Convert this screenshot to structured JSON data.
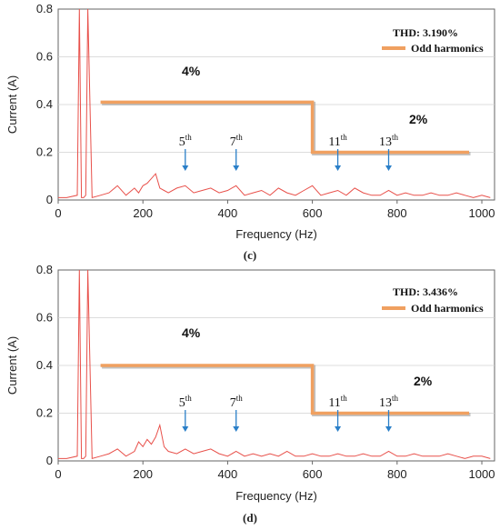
{
  "chart_data": [
    {
      "type": "line",
      "panel_caption": "(c)",
      "xlabel": "Frequency (Hz)",
      "ylabel": "Current (A)",
      "xlim": [
        0,
        1030
      ],
      "ylim": [
        0,
        0.8
      ],
      "xticks": [
        "0",
        "200",
        "400",
        "600",
        "800",
        "1000"
      ],
      "yticks": [
        "0",
        "0.2",
        "0.4",
        "0.6",
        "0.8"
      ],
      "legend_title": "THD: 3.190%",
      "legend_entry": "Odd harmonics",
      "limit_labels": [
        "4%",
        "2%"
      ],
      "limit_series": {
        "name": "Odd harmonics",
        "x": [
          100,
          600,
          600,
          970
        ],
        "y": [
          0.41,
          0.41,
          0.2,
          0.2
        ]
      },
      "harmonics": [
        {
          "base": "5",
          "sup": "th",
          "x": 300
        },
        {
          "base": "7",
          "sup": "th",
          "x": 420
        },
        {
          "base": "11",
          "sup": "th",
          "x": 660
        },
        {
          "base": "13",
          "sup": "th",
          "x": 780
        }
      ],
      "spectrum": {
        "x": [
          0,
          20,
          45,
          50,
          55,
          60,
          65,
          70,
          80,
          100,
          120,
          140,
          160,
          180,
          190,
          200,
          210,
          220,
          230,
          240,
          250,
          260,
          280,
          300,
          320,
          340,
          360,
          380,
          400,
          420,
          440,
          460,
          480,
          500,
          520,
          540,
          560,
          580,
          600,
          620,
          640,
          660,
          680,
          700,
          720,
          740,
          760,
          780,
          800,
          820,
          840,
          860,
          880,
          900,
          920,
          940,
          960,
          980,
          1000,
          1020
        ],
        "y": [
          0.01,
          0.01,
          0.02,
          0.8,
          0.01,
          0.01,
          0.02,
          0.8,
          0.01,
          0.02,
          0.03,
          0.06,
          0.02,
          0.05,
          0.03,
          0.06,
          0.07,
          0.09,
          0.11,
          0.05,
          0.04,
          0.03,
          0.05,
          0.06,
          0.03,
          0.04,
          0.05,
          0.03,
          0.04,
          0.06,
          0.02,
          0.03,
          0.04,
          0.02,
          0.05,
          0.03,
          0.02,
          0.04,
          0.06,
          0.02,
          0.03,
          0.04,
          0.02,
          0.05,
          0.03,
          0.02,
          0.02,
          0.04,
          0.02,
          0.03,
          0.02,
          0.02,
          0.03,
          0.02,
          0.02,
          0.03,
          0.02,
          0.01,
          0.02,
          0.01
        ]
      }
    },
    {
      "type": "line",
      "panel_caption": "(d)",
      "xlabel": "Frequency (Hz)",
      "ylabel": "Current (A)",
      "xlim": [
        0,
        1030
      ],
      "ylim": [
        0,
        0.8
      ],
      "xticks": [
        "0",
        "200",
        "400",
        "600",
        "800",
        "1000"
      ],
      "yticks": [
        "0",
        "0.2",
        "0.4",
        "0.6",
        "0.8"
      ],
      "legend_title": "THD: 3.436%",
      "legend_entry": "Odd harmonics",
      "limit_labels": [
        "4%",
        "2%"
      ],
      "limit_series": {
        "name": "Odd harmonics",
        "x": [
          100,
          600,
          600,
          970
        ],
        "y": [
          0.4,
          0.4,
          0.2,
          0.2
        ]
      },
      "harmonics": [
        {
          "base": "5",
          "sup": "th",
          "x": 300
        },
        {
          "base": "7",
          "sup": "th",
          "x": 420
        },
        {
          "base": "11",
          "sup": "th",
          "x": 660
        },
        {
          "base": "13",
          "sup": "th",
          "x": 780
        }
      ],
      "spectrum": {
        "x": [
          0,
          20,
          45,
          50,
          55,
          60,
          65,
          70,
          80,
          100,
          120,
          140,
          160,
          180,
          190,
          200,
          210,
          220,
          230,
          240,
          250,
          260,
          280,
          300,
          320,
          340,
          360,
          380,
          400,
          420,
          440,
          460,
          480,
          500,
          520,
          540,
          560,
          580,
          600,
          620,
          640,
          660,
          680,
          700,
          720,
          740,
          760,
          780,
          800,
          820,
          840,
          860,
          880,
          900,
          920,
          940,
          960,
          980,
          1000,
          1020
        ],
        "y": [
          0.01,
          0.01,
          0.02,
          0.8,
          0.01,
          0.01,
          0.02,
          0.8,
          0.01,
          0.02,
          0.03,
          0.05,
          0.02,
          0.04,
          0.08,
          0.06,
          0.09,
          0.07,
          0.1,
          0.15,
          0.06,
          0.04,
          0.03,
          0.05,
          0.03,
          0.04,
          0.05,
          0.03,
          0.02,
          0.04,
          0.02,
          0.03,
          0.02,
          0.03,
          0.02,
          0.04,
          0.02,
          0.02,
          0.03,
          0.02,
          0.02,
          0.03,
          0.02,
          0.02,
          0.03,
          0.02,
          0.02,
          0.04,
          0.02,
          0.02,
          0.03,
          0.02,
          0.02,
          0.02,
          0.03,
          0.02,
          0.01,
          0.02,
          0.02,
          0.01
        ]
      }
    }
  ],
  "colors": {
    "spectrum": "#e8504a",
    "limit": "#f0a060",
    "limit_shadow": "#9a9a9a",
    "arrow": "#2a7fc8",
    "grid": "#d0d0d0"
  }
}
